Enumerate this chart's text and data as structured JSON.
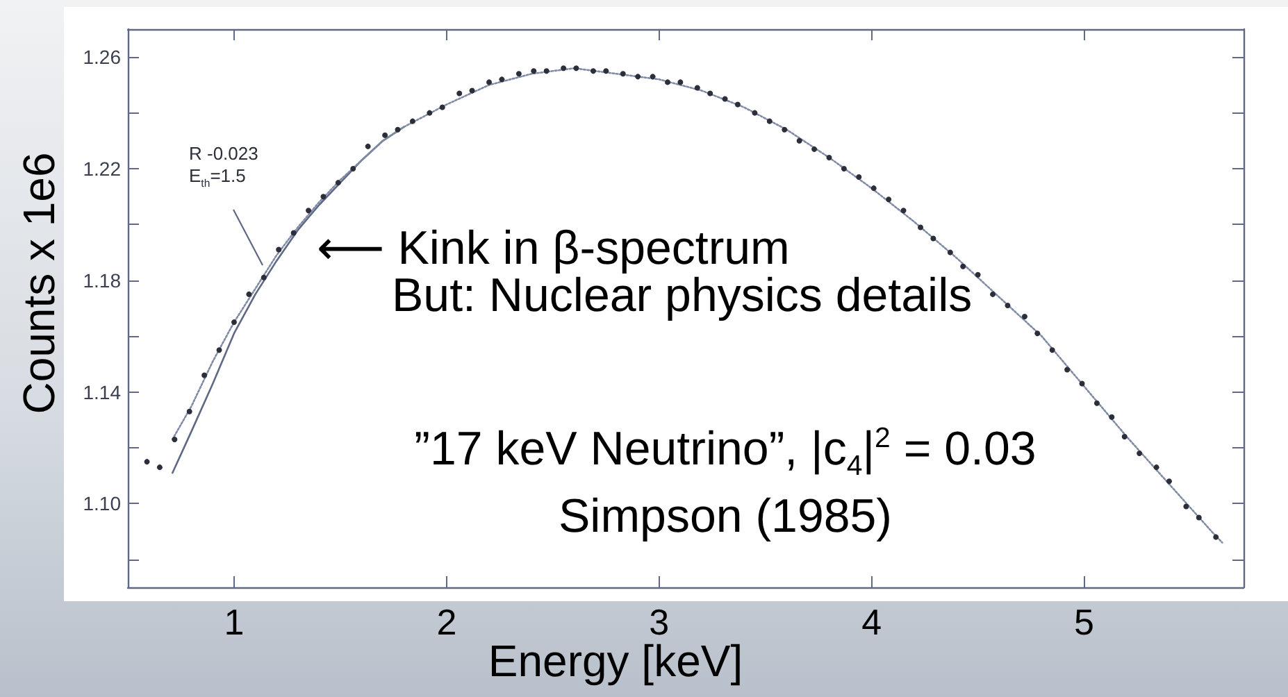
{
  "chart_data": {
    "type": "scatter",
    "xlabel": "Energy [keV]",
    "ylabel": "Counts x 1e6",
    "xlim": [
      0.5,
      5.75
    ],
    "ylim": [
      1.07,
      1.27
    ],
    "xticks": [
      1,
      2,
      3,
      4,
      5
    ],
    "yticks": [
      {
        "value": 1.08,
        "label": null
      },
      {
        "value": 1.1,
        "label": "1.10"
      },
      {
        "value": 1.12,
        "label": null
      },
      1.14,
      {
        "value": 1.16,
        "label": null
      },
      1.18,
      {
        "value": 1.2,
        "label": null
      },
      1.22,
      {
        "value": 1.24,
        "label": null
      },
      1.26
    ],
    "marker": "circle",
    "series": [
      {
        "type": "line",
        "line_style": "solid",
        "marker": "none",
        "color": "#5f6985",
        "x": [
          0.71,
          0.8,
          0.9,
          1.0,
          1.1,
          1.2,
          1.3,
          1.4,
          1.5,
          1.6,
          1.7,
          1.8
        ],
        "values": [
          1.111,
          1.126,
          1.143,
          1.161,
          1.175,
          1.187,
          1.198,
          1.207,
          1.215,
          1.223,
          1.23,
          1.235
        ]
      },
      {
        "type": "line",
        "line_style": "dotted",
        "marker": "none",
        "color": "#7f8aa5",
        "x": [
          0.71,
          0.8,
          0.9,
          1.0,
          1.1,
          1.2,
          1.3,
          1.4,
          1.5,
          1.6,
          1.7,
          1.8,
          1.9,
          2.0,
          2.2,
          2.4,
          2.6,
          2.8,
          3.0,
          3.2,
          3.4,
          3.6,
          3.8,
          4.0,
          4.2,
          4.4,
          4.6,
          4.8,
          5.0,
          5.2,
          5.4,
          5.6,
          5.65
        ],
        "values": [
          1.123,
          1.135,
          1.151,
          1.165,
          1.177,
          1.189,
          1.199,
          1.208,
          1.216,
          1.223,
          1.23,
          1.235,
          1.239,
          1.243,
          1.25,
          1.254,
          1.256,
          1.254,
          1.252,
          1.248,
          1.242,
          1.234,
          1.224,
          1.213,
          1.201,
          1.188,
          1.174,
          1.16,
          1.142,
          1.124,
          1.107,
          1.09,
          1.086
        ]
      },
      {
        "color": "#2c2f3a",
        "x": [
          0.59,
          0.65,
          0.72,
          0.79,
          0.86,
          0.93,
          1.0,
          1.07,
          1.14,
          1.21,
          1.28,
          1.35,
          1.42,
          1.49,
          1.56,
          1.63,
          1.71,
          1.77,
          1.84,
          1.92,
          1.98,
          2.06,
          2.12,
          2.2,
          2.26,
          2.34,
          2.41,
          2.47,
          2.55,
          2.61,
          2.69,
          2.75,
          2.83,
          2.9,
          2.97,
          3.04,
          3.1,
          3.18,
          3.24,
          3.31,
          3.37,
          3.45,
          3.52,
          3.59,
          3.66,
          3.73,
          3.8,
          3.87,
          3.94,
          4.01,
          4.08,
          4.15,
          4.23,
          4.29,
          4.37,
          4.43,
          4.5,
          4.57,
          4.64,
          4.72,
          4.78,
          4.85,
          4.92,
          4.99,
          5.06,
          5.13,
          5.19,
          5.26,
          5.34,
          5.4,
          5.48,
          5.54,
          5.62
        ],
        "values": [
          1.115,
          1.113,
          1.123,
          1.133,
          1.146,
          1.155,
          1.165,
          1.175,
          1.181,
          1.191,
          1.197,
          1.205,
          1.21,
          1.215,
          1.22,
          1.228,
          1.232,
          1.234,
          1.237,
          1.24,
          1.242,
          1.247,
          1.248,
          1.251,
          1.252,
          1.254,
          1.255,
          1.255,
          1.256,
          1.256,
          1.255,
          1.255,
          1.254,
          1.253,
          1.253,
          1.251,
          1.251,
          1.249,
          1.247,
          1.245,
          1.243,
          1.24,
          1.237,
          1.234,
          1.23,
          1.227,
          1.224,
          1.22,
          1.217,
          1.213,
          1.209,
          1.205,
          1.199,
          1.195,
          1.19,
          1.185,
          1.182,
          1.175,
          1.171,
          1.167,
          1.161,
          1.155,
          1.148,
          1.143,
          1.136,
          1.131,
          1.124,
          1.118,
          1.113,
          1.108,
          1.099,
          1.095,
          1.088
        ]
      }
    ],
    "annotations": [
      "R -0.023",
      "E$_{th}$=1.5",
      "⟵ Kink in β-spectrum",
      "But: Nuclear physics details",
      "”17 keV Neutrino”, |c$_{4}$|$^{2}$ = 0.03",
      "Simpson (1985)"
    ]
  }
}
